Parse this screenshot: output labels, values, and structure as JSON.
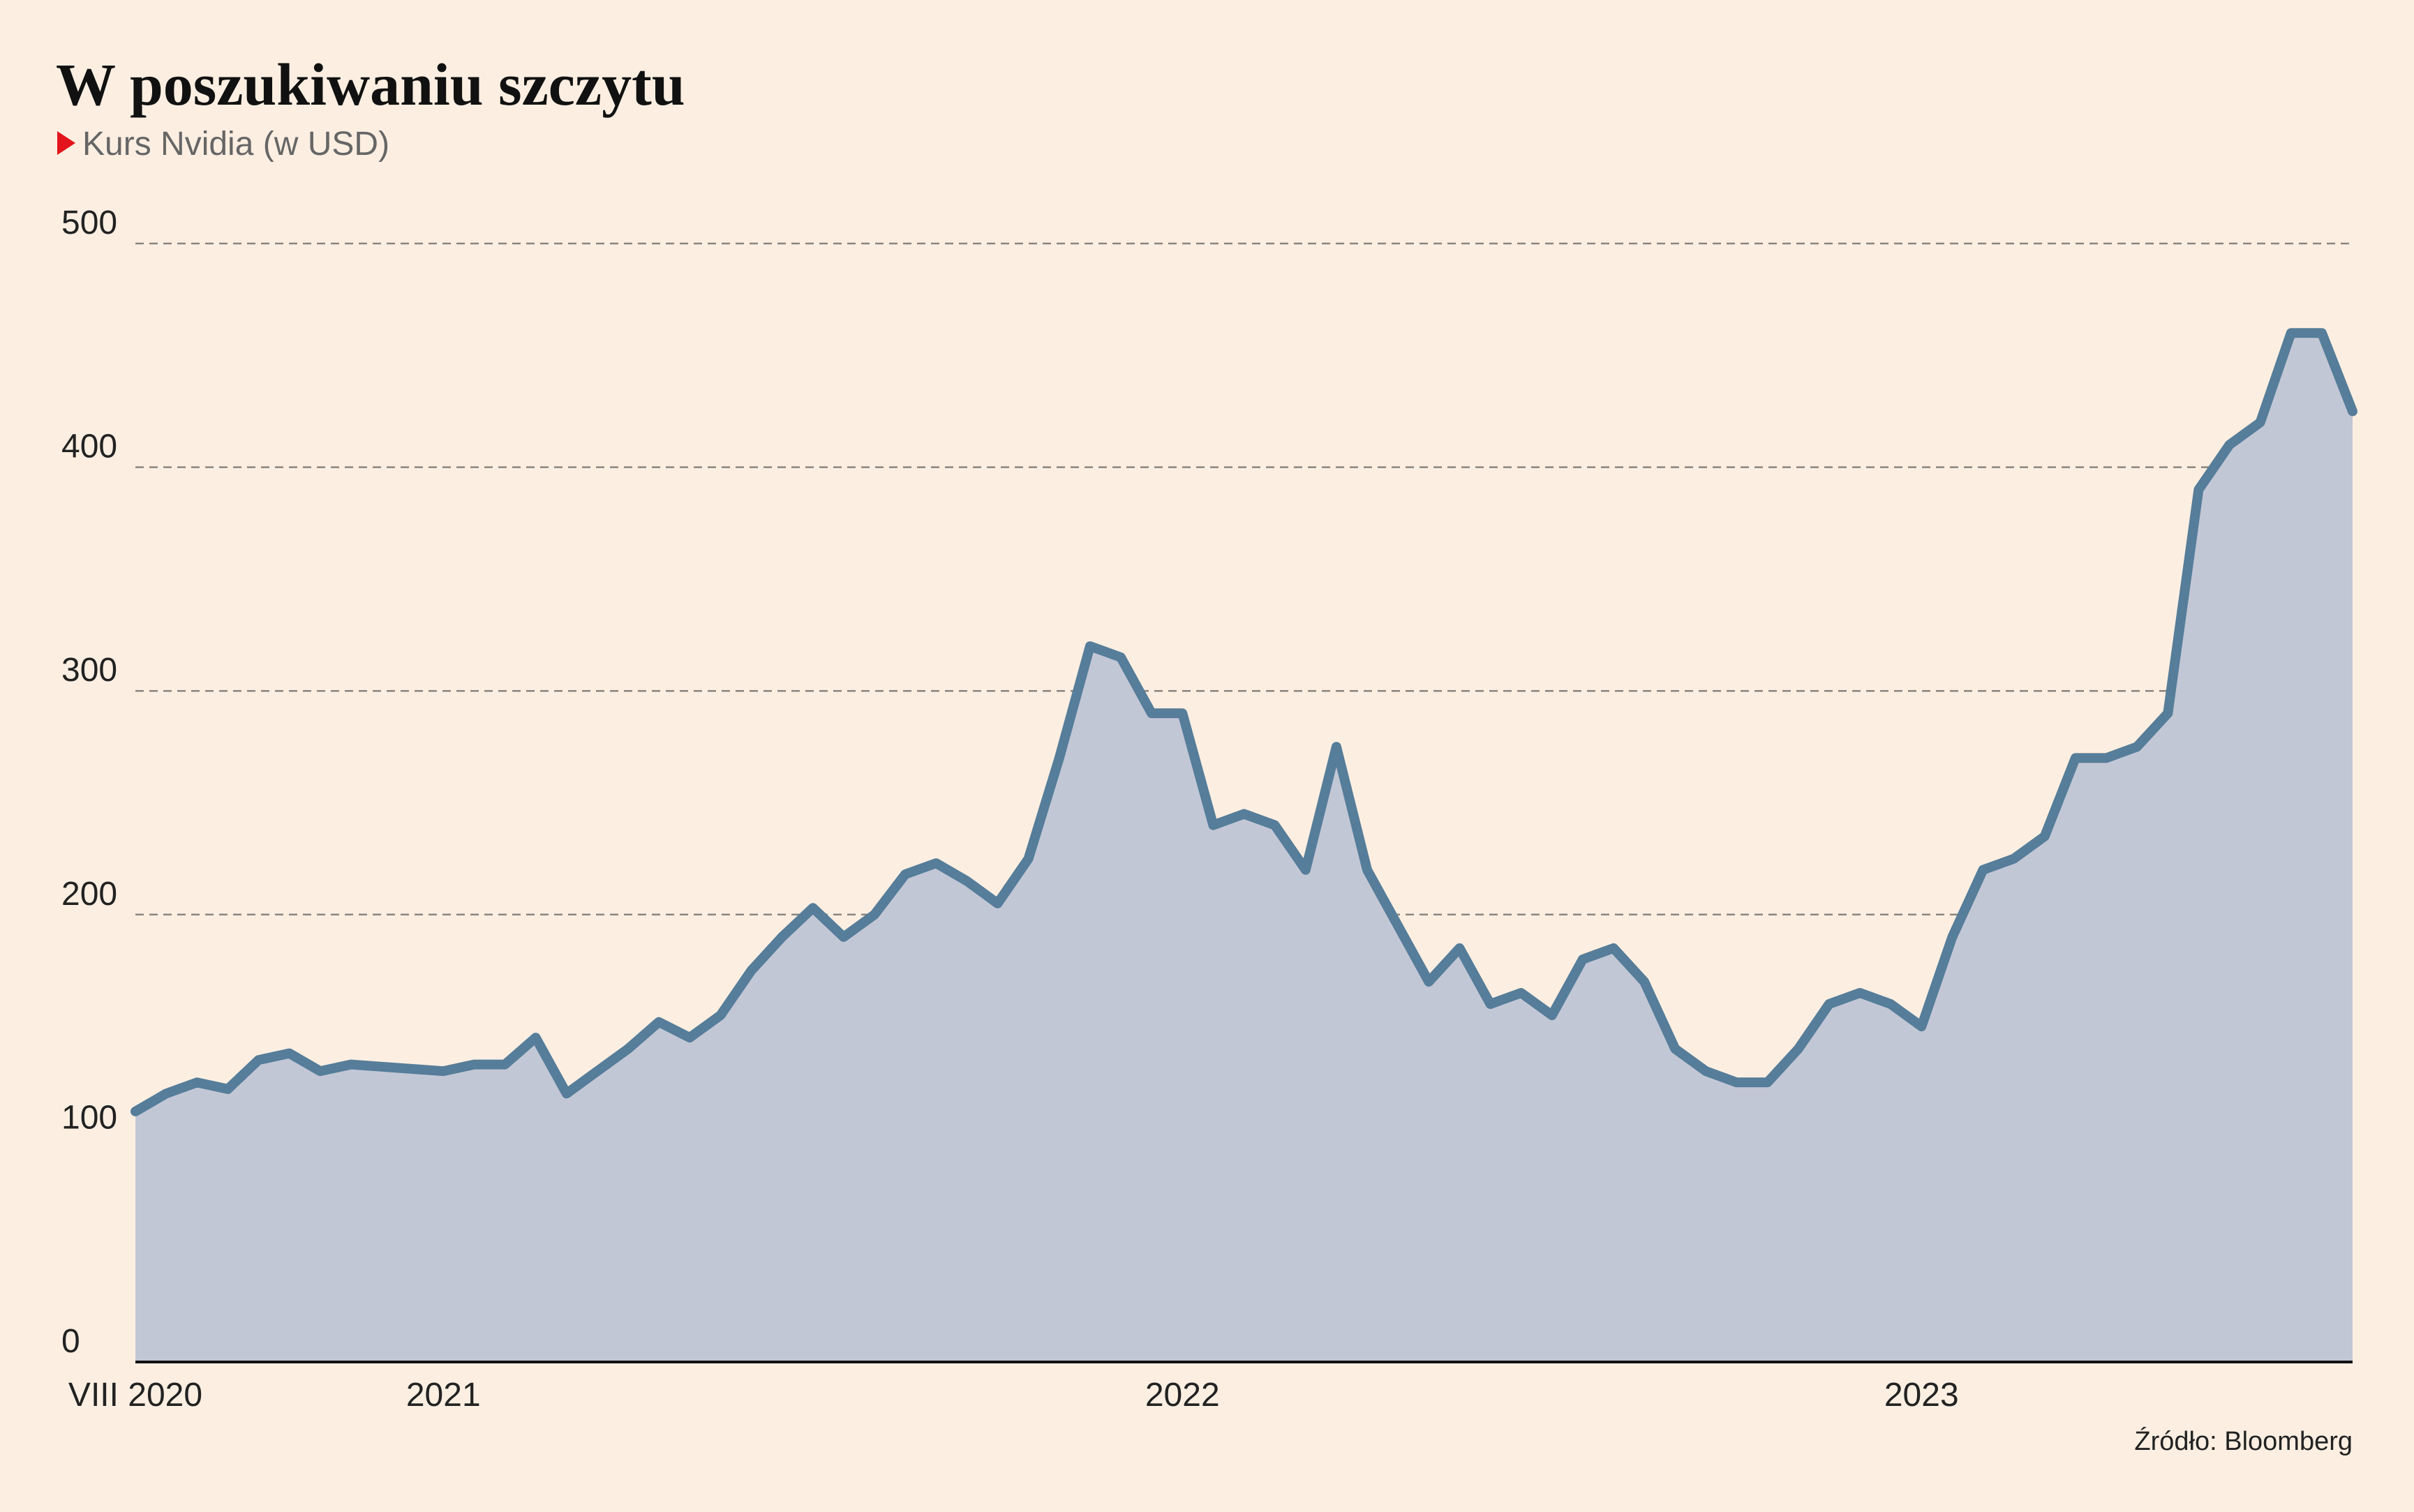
{
  "chart_data": {
    "type": "area",
    "title": "W poszukiwaniu szczytu",
    "subtitle": "Kurs Nvidia (w USD)",
    "source": "Źródło: Bloomberg",
    "categories": [
      "VIII 2020",
      null,
      null,
      null,
      null,
      null,
      null,
      null,
      null,
      null,
      "2021",
      null,
      null,
      null,
      null,
      null,
      null,
      null,
      null,
      null,
      null,
      null,
      null,
      null,
      null,
      null,
      null,
      null,
      null,
      null,
      null,
      null,
      null,
      null,
      "2022",
      null,
      null,
      null,
      null,
      null,
      null,
      null,
      null,
      null,
      null,
      null,
      null,
      null,
      null,
      null,
      null,
      null,
      null,
      null,
      null,
      null,
      null,
      null,
      "2023",
      null,
      null,
      null,
      null,
      null,
      null,
      null,
      null,
      null,
      null,
      null,
      null,
      null,
      null
    ],
    "values": [
      112,
      120,
      125,
      122,
      135,
      138,
      130,
      133,
      132,
      131,
      130,
      133,
      133,
      145,
      120,
      130,
      140,
      152,
      145,
      155,
      175,
      190,
      203,
      190,
      200,
      218,
      223,
      215,
      205,
      225,
      270,
      320,
      315,
      290,
      290,
      240,
      245,
      240,
      220,
      275,
      220,
      195,
      170,
      185,
      160,
      165,
      155,
      180,
      185,
      170,
      140,
      130,
      125,
      125,
      140,
      160,
      165,
      160,
      150,
      190,
      220,
      225,
      235,
      270,
      270,
      275,
      290,
      390,
      410,
      420,
      460,
      460,
      425
    ],
    "color": "#567d99",
    "fill": "#c2c7d6",
    "ylim": [
      0,
      500
    ],
    "yticks": [
      0,
      100,
      200,
      300,
      400,
      500
    ],
    "grid": true
  }
}
